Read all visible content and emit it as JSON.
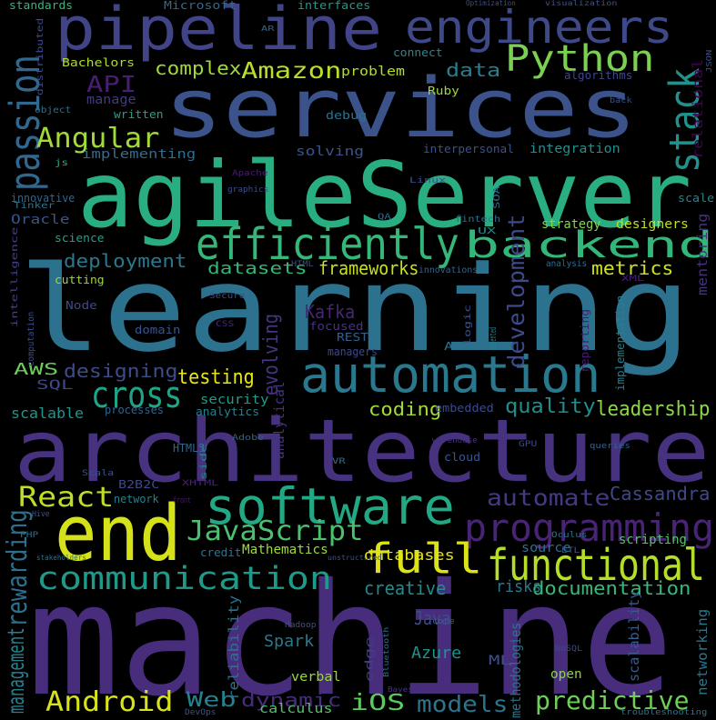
{
  "words": [
    {
      "text": "machine",
      "color": "#472d7b"
    },
    {
      "text": "learning",
      "color": "#2c728e"
    },
    {
      "text": "architecture",
      "color": "#46327e"
    },
    {
      "text": "agileServer",
      "color": "#28ae80"
    },
    {
      "text": "services",
      "color": "#3b528b"
    },
    {
      "text": "pipeline",
      "color": "#414487"
    },
    {
      "text": "engineers",
      "color": "#3e4989"
    },
    {
      "text": "end",
      "color": "#d5e21a"
    },
    {
      "text": "automation",
      "color": "#2a788e"
    },
    {
      "text": "software",
      "color": "#22a884"
    },
    {
      "text": "efficiently",
      "color": "#35b779"
    },
    {
      "text": "backend",
      "color": "#32b67a"
    },
    {
      "text": "functional",
      "color": "#b5de2b"
    },
    {
      "text": "communication",
      "color": "#1f9a8a"
    },
    {
      "text": "programming",
      "color": "#482475"
    },
    {
      "text": "full",
      "color": "#dde318"
    },
    {
      "text": "Python",
      "color": "#7ad151"
    },
    {
      "text": "passion",
      "color": "#31688e"
    },
    {
      "text": "stack",
      "color": "#21918c"
    },
    {
      "text": "cross",
      "color": "#20a386"
    },
    {
      "text": "JavaScript",
      "color": "#4ac16d"
    },
    {
      "text": "React",
      "color": "#bddf26"
    },
    {
      "text": "Android",
      "color": "#d8e219"
    },
    {
      "text": "predictive",
      "color": "#6ece58"
    },
    {
      "text": "models",
      "color": "#2c738e"
    },
    {
      "text": "iOS",
      "color": "#5ec962"
    },
    {
      "text": "Web",
      "color": "#26828e"
    },
    {
      "text": "rewarding",
      "color": "#2d708e"
    },
    {
      "text": "Angular",
      "color": "#a2da37"
    },
    {
      "text": "automate",
      "color": "#443a83"
    },
    {
      "text": "development",
      "color": "#3e4a89"
    },
    {
      "text": "Amazon",
      "color": "#b8de29"
    },
    {
      "text": "API",
      "color": "#481f70"
    },
    {
      "text": "testing",
      "color": "#e7e419"
    },
    {
      "text": "designing",
      "color": "#3e4c8a"
    },
    {
      "text": "deployment",
      "color": "#2a778e"
    },
    {
      "text": "quality",
      "color": "#228c8d"
    },
    {
      "text": "leadership",
      "color": "#8ed645"
    },
    {
      "text": "documentation",
      "color": "#37b878"
    },
    {
      "text": "management",
      "color": "#277f8e"
    },
    {
      "text": "metrics",
      "color": "#d2e21b"
    },
    {
      "text": "frameworks",
      "color": "#c8e020"
    },
    {
      "text": "datasets",
      "color": "#35b779"
    },
    {
      "text": "complex",
      "color": "#a0da39"
    },
    {
      "text": "data",
      "color": "#277e8e"
    },
    {
      "text": "coding",
      "color": "#a5db36"
    },
    {
      "text": "dynamic",
      "color": "#472e7c"
    },
    {
      "text": "Cassandra",
      "color": "#3f4889"
    },
    {
      "text": "creative",
      "color": "#238a8d"
    },
    {
      "text": "risks",
      "color": "#2a768e"
    },
    {
      "text": "evolving",
      "color": "#463480"
    },
    {
      "text": "Kafka",
      "color": "#482576"
    },
    {
      "text": "Java",
      "color": "#3e4c8a"
    },
    {
      "text": "Spark",
      "color": "#2a788e"
    },
    {
      "text": "Azure",
      "color": "#20928c"
    },
    {
      "text": "AWS",
      "color": "#6ccd5a"
    },
    {
      "text": "security",
      "color": "#1e9c89"
    },
    {
      "text": "scalable",
      "color": "#1f968b"
    },
    {
      "text": "Oracle",
      "color": "#3a548c"
    },
    {
      "text": "SQL",
      "color": "#3f4889"
    },
    {
      "text": "databases",
      "color": "#e1e418"
    },
    {
      "text": "scripting",
      "color": "#56c667"
    },
    {
      "text": "source",
      "color": "#2e6e8e"
    },
    {
      "text": "open",
      "color": "#87d549"
    },
    {
      "text": "verbal",
      "color": "#99d83d"
    },
    {
      "text": "calculus",
      "color": "#4ec36b"
    },
    {
      "text": "ML",
      "color": "#3d4e8a"
    },
    {
      "text": "implementing",
      "color": "#2e6d8e"
    },
    {
      "text": "solving",
      "color": "#39558c"
    },
    {
      "text": "problem",
      "color": "#b2dd2d"
    },
    {
      "text": "manage",
      "color": "#443983"
    },
    {
      "text": "written",
      "color": "#20a386"
    },
    {
      "text": "debug",
      "color": "#2c718e"
    },
    {
      "text": "integration",
      "color": "#218f8d"
    },
    {
      "text": "strategy",
      "color": "#86d549"
    },
    {
      "text": "designers",
      "color": "#c0df25"
    },
    {
      "text": "innovative",
      "color": "#32658e"
    },
    {
      "text": "science",
      "color": "#1fa287"
    },
    {
      "text": "cutting",
      "color": "#99d83d"
    },
    {
      "text": "Node",
      "color": "#3f4788"
    },
    {
      "text": "focused",
      "color": "#46337f"
    },
    {
      "text": "domain",
      "color": "#3a538b"
    },
    {
      "text": "managers",
      "color": "#3f4889"
    },
    {
      "text": "analytical",
      "color": "#463480"
    },
    {
      "text": "reliability",
      "color": "#2c718e"
    },
    {
      "text": "methodologies",
      "color": "#2b748e"
    },
    {
      "text": "scalability",
      "color": "#365c8d"
    },
    {
      "text": "networking",
      "color": "#2a768e"
    },
    {
      "text": "mentoring",
      "color": "#46327e"
    },
    {
      "text": "relational",
      "color": "#440154"
    },
    {
      "text": "interpersonal",
      "color": "#3b518b"
    },
    {
      "text": "algorithms",
      "color": "#3f4788"
    },
    {
      "text": "processes",
      "color": "#33638d"
    },
    {
      "text": "analytics",
      "color": "#26818e"
    },
    {
      "text": "embedded",
      "color": "#3e4989"
    },
    {
      "text": "cloud",
      "color": "#3a548c"
    },
    {
      "text": "reporting",
      "color": "#481d6f"
    },
    {
      "text": "implementation",
      "color": "#277f8e"
    },
    {
      "text": "Bachelors",
      "color": "#b0dd2f"
    },
    {
      "text": "standards",
      "color": "#32b67a"
    },
    {
      "text": "Microsoft",
      "color": "#31688e"
    },
    {
      "text": "interfaces",
      "color": "#1f988b"
    },
    {
      "text": "connect",
      "color": "#23898e"
    },
    {
      "text": "Ruby",
      "color": "#9bd93c"
    },
    {
      "text": "distributed",
      "color": "#3e4c8a"
    },
    {
      "text": "object",
      "color": "#2d708e"
    },
    {
      "text": "js",
      "color": "#25ab82"
    },
    {
      "text": "Apache",
      "color": "#481f70"
    },
    {
      "text": "graphics",
      "color": "#3d4d8a"
    },
    {
      "text": "Linux",
      "color": "#3b528b"
    },
    {
      "text": "SOA",
      "color": "#2e6f8e"
    },
    {
      "text": "scale",
      "color": "#25848e"
    },
    {
      "text": "Tinker",
      "color": "#2b748e"
    },
    {
      "text": "fintech",
      "color": "#2d708e"
    },
    {
      "text": "UX",
      "color": "#228b8d"
    },
    {
      "text": "QA",
      "color": "#31688e"
    },
    {
      "text": "HTML",
      "color": "#3e4a89"
    },
    {
      "text": "innovations",
      "color": "#32658e"
    },
    {
      "text": "analysis",
      "color": "#2f6c8e"
    },
    {
      "text": "XML",
      "color": "#482071"
    },
    {
      "text": "logic",
      "color": "#3b518b"
    },
    {
      "text": "oriented",
      "color": "#25858e"
    },
    {
      "text": "Secure",
      "color": "#3e4a89"
    },
    {
      "text": "CSS",
      "color": "#482677"
    },
    {
      "text": "REST",
      "color": "#355f8d"
    },
    {
      "text": "AI",
      "color": "#2b748e"
    },
    {
      "text": "intelligence",
      "color": "#424086"
    },
    {
      "text": "computation",
      "color": "#3d4d8a"
    },
    {
      "text": "HTML5",
      "color": "#31688e"
    },
    {
      "text": "Adobe",
      "color": "#33638d"
    },
    {
      "text": "side",
      "color": "#26828e"
    },
    {
      "text": "warehouse",
      "color": "#46327e"
    },
    {
      "text": "VR",
      "color": "#2c718e"
    },
    {
      "text": "GPU",
      "color": "#3e4a89"
    },
    {
      "text": "queries",
      "color": "#34618d"
    },
    {
      "text": "Scala",
      "color": "#3b528b"
    },
    {
      "text": "XHTML",
      "color": "#482475"
    },
    {
      "text": "B2B2C",
      "color": "#3e4989"
    },
    {
      "text": "network",
      "color": "#26818e"
    },
    {
      "text": "front",
      "color": "#481b6d"
    },
    {
      "text": "Hive",
      "color": "#3b518b"
    },
    {
      "text": "PHP",
      "color": "#2e6e8e"
    },
    {
      "text": "stakeholders",
      "color": "#2c728e"
    },
    {
      "text": "unstructured",
      "color": "#3b528b"
    },
    {
      "text": "Mathematics",
      "color": "#a0da39"
    },
    {
      "text": "credit",
      "color": "#2c738e"
    },
    {
      "text": "Oculus",
      "color": "#2c738e"
    },
    {
      "text": "ETL",
      "color": "#3a548c"
    },
    {
      "text": "core",
      "color": "#32658e"
    },
    {
      "text": "Hadoop",
      "color": "#3d4e8a"
    },
    {
      "text": "edge",
      "color": "#424086"
    },
    {
      "text": "Bluetooth",
      "color": "#2c718e"
    },
    {
      "text": "Bayesian",
      "color": "#46327e"
    },
    {
      "text": "NoSQL",
      "color": "#3e4a89"
    },
    {
      "text": "DevOps",
      "color": "#3b518b"
    },
    {
      "text": "troubleshooting",
      "color": "#2c728e"
    },
    {
      "text": "Optimization",
      "color": "#3b528b"
    },
    {
      "text": "visualization",
      "color": "#3b528b"
    },
    {
      "text": "AR",
      "color": "#33638d"
    },
    {
      "text": "JSON",
      "color": "#3b518b"
    },
    {
      "text": "back",
      "color": "#3b518b"
    }
  ]
}
